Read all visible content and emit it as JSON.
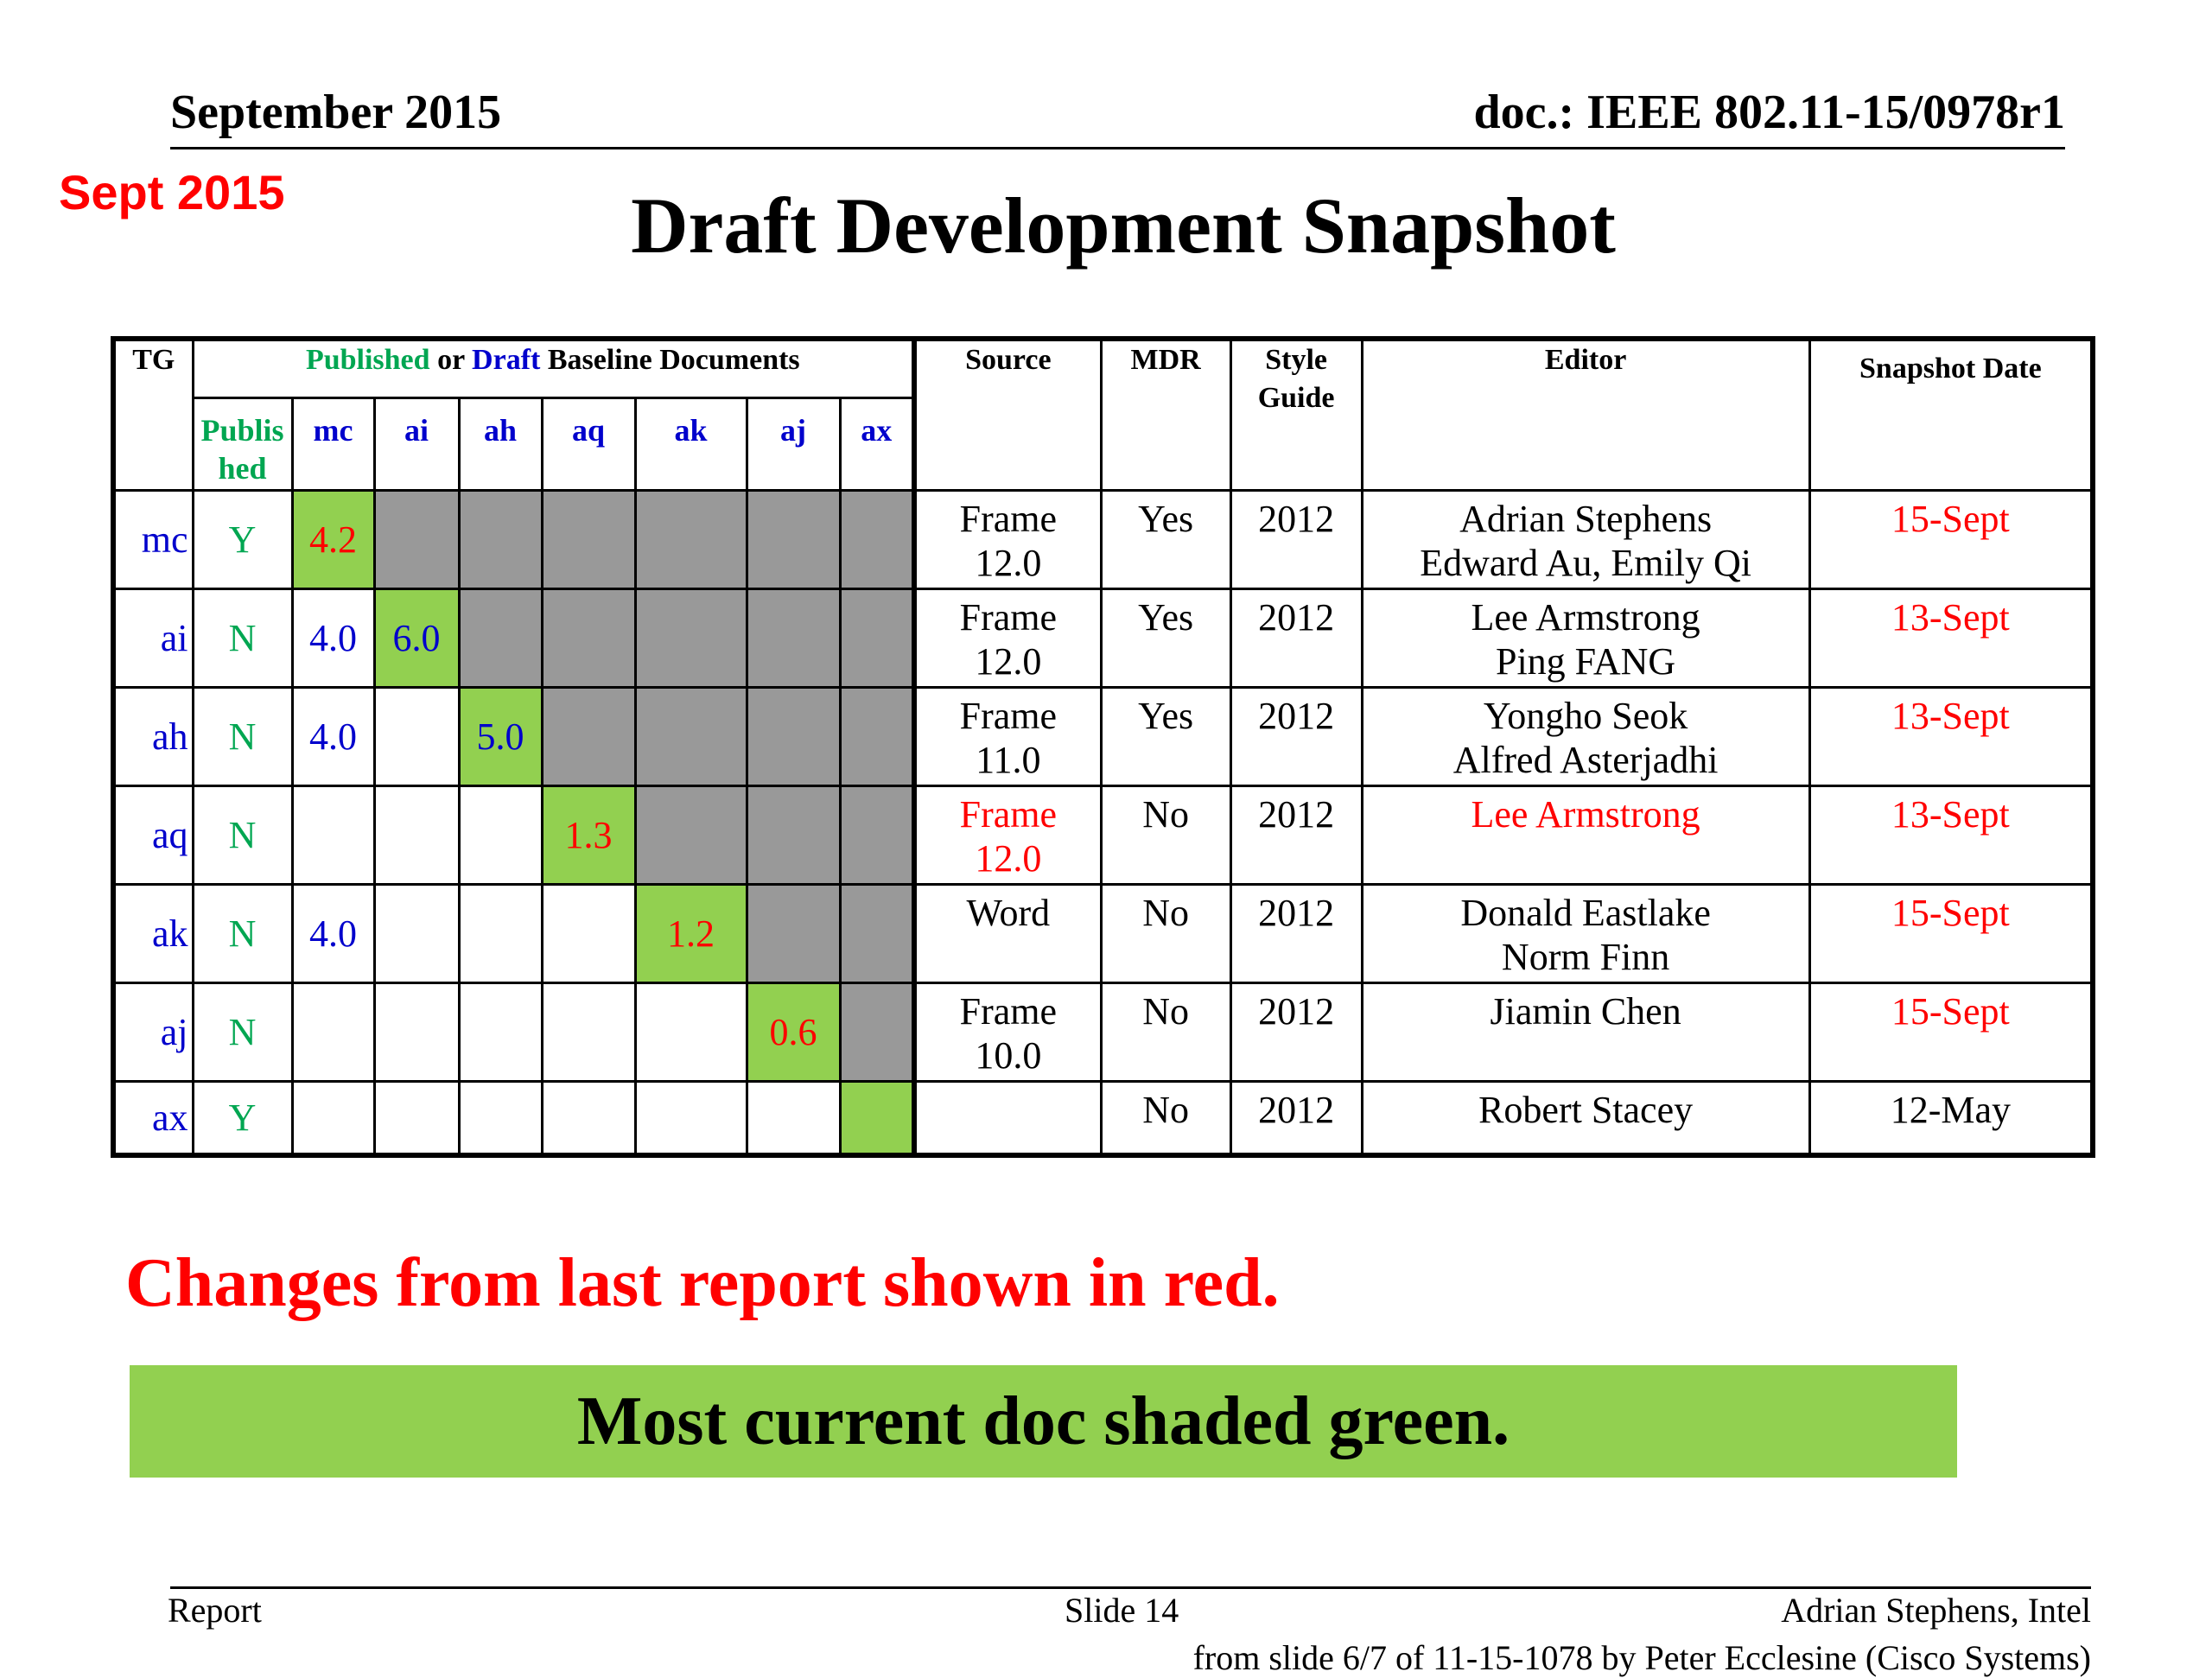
{
  "header": {
    "date": "September 2015",
    "doc_id": "doc.: IEEE 802.11-15/0978r1",
    "stamp": "Sept 2015"
  },
  "title": "Draft Development Snapshot",
  "table": {
    "headers": {
      "tg": "TG",
      "baseline_published": "Published",
      "baseline_or": " or ",
      "baseline_draft": "Draft",
      "baseline_rest": " Baseline Documents",
      "published_sub": "Published",
      "source": "Source",
      "mdr": "MDR",
      "style_guide": "Style Guide",
      "editor": "Editor",
      "snapshot_date": "Snapshot Date"
    },
    "baseline_columns": [
      "mc",
      "ai",
      "ah",
      "aq",
      "ak",
      "aj",
      "ax"
    ],
    "rows": [
      {
        "tg": "mc",
        "published": "Y",
        "cells": [
          "4.2",
          "",
          "",
          "",
          "",
          "",
          ""
        ],
        "cell_colors": [
          "red",
          "",
          "",
          "",
          "",
          "",
          ""
        ],
        "source": [
          "Frame",
          "12.0"
        ],
        "source_red": false,
        "mdr": "Yes",
        "style": "2012",
        "editor": [
          "Adrian Stephens",
          "Edward Au, Emily Qi"
        ],
        "editor_red": false,
        "date": "15-Sept",
        "date_red": true
      },
      {
        "tg": "ai",
        "published": "N",
        "cells": [
          "4.0",
          "6.0",
          "",
          "",
          "",
          "",
          ""
        ],
        "cell_colors": [
          "blue",
          "blue",
          "",
          "",
          "",
          "",
          ""
        ],
        "source": [
          "Frame",
          "12.0"
        ],
        "source_red": false,
        "mdr": "Yes",
        "style": "2012",
        "editor": [
          "Lee Armstrong",
          "Ping FANG"
        ],
        "editor_red": false,
        "date": "13-Sept",
        "date_red": true
      },
      {
        "tg": "ah",
        "published": "N",
        "cells": [
          "4.0",
          "",
          "5.0",
          "",
          "",
          "",
          ""
        ],
        "cell_colors": [
          "blue",
          "",
          "blue",
          "",
          "",
          "",
          ""
        ],
        "source": [
          "Frame",
          "11.0"
        ],
        "source_red": false,
        "mdr": "Yes",
        "style": "2012",
        "editor": [
          "Yongho Seok",
          "Alfred Asterjadhi"
        ],
        "editor_red": false,
        "date": "13-Sept",
        "date_red": true
      },
      {
        "tg": "aq",
        "published": "N",
        "cells": [
          "",
          "",
          "",
          "1.3",
          "",
          "",
          ""
        ],
        "cell_colors": [
          "",
          "",
          "",
          "red",
          "",
          "",
          ""
        ],
        "source": [
          "Frame",
          "12.0"
        ],
        "source_red": true,
        "mdr": "No",
        "style": "2012",
        "editor": [
          "Lee Armstrong",
          ""
        ],
        "editor_red": true,
        "date": "13-Sept",
        "date_red": true
      },
      {
        "tg": "ak",
        "published": "N",
        "cells": [
          "4.0",
          "",
          "",
          "",
          "1.2",
          "",
          ""
        ],
        "cell_colors": [
          "blue",
          "",
          "",
          "",
          "red",
          "",
          ""
        ],
        "source": [
          "Word",
          ""
        ],
        "source_red": false,
        "mdr": "No",
        "style": "2012",
        "editor": [
          "Donald Eastlake",
          "Norm Finn"
        ],
        "editor_red": false,
        "date": "15-Sept",
        "date_red": true
      },
      {
        "tg": "aj",
        "published": "N",
        "cells": [
          "",
          "",
          "",
          "",
          "",
          "0.6",
          ""
        ],
        "cell_colors": [
          "",
          "",
          "",
          "",
          "",
          "red",
          ""
        ],
        "source": [
          "Frame",
          "10.0"
        ],
        "source_red": false,
        "mdr": "No",
        "style": "2012",
        "editor": [
          "Jiamin Chen",
          ""
        ],
        "editor_red": false,
        "date": "15-Sept",
        "date_red": true
      },
      {
        "tg": "ax",
        "published": "Y",
        "cells": [
          "",
          "",
          "",
          "",
          "",
          "",
          ""
        ],
        "cell_colors": [
          "",
          "",
          "",
          "",
          "",
          "",
          ""
        ],
        "source": [
          "",
          ""
        ],
        "source_red": false,
        "mdr": "No",
        "style": "2012",
        "editor": [
          "Robert Stacey",
          ""
        ],
        "editor_red": false,
        "date": "12-May",
        "date_red": false
      }
    ]
  },
  "notes": {
    "changes": "Changes from  last report shown in red.",
    "shaded": "Most current doc shaded green."
  },
  "footer": {
    "left": "Report",
    "center": "Slide 14",
    "right": "Adrian Stephens, Intel",
    "source": "from slide 6/7 of 11-15-1078 by Peter Ecclesine (Cisco Systems)"
  },
  "colors": {
    "green_shade": "#92d050",
    "gray_shade": "#999999",
    "red": "#ff0000",
    "blue": "#0000cc",
    "published_green": "#00a651"
  }
}
